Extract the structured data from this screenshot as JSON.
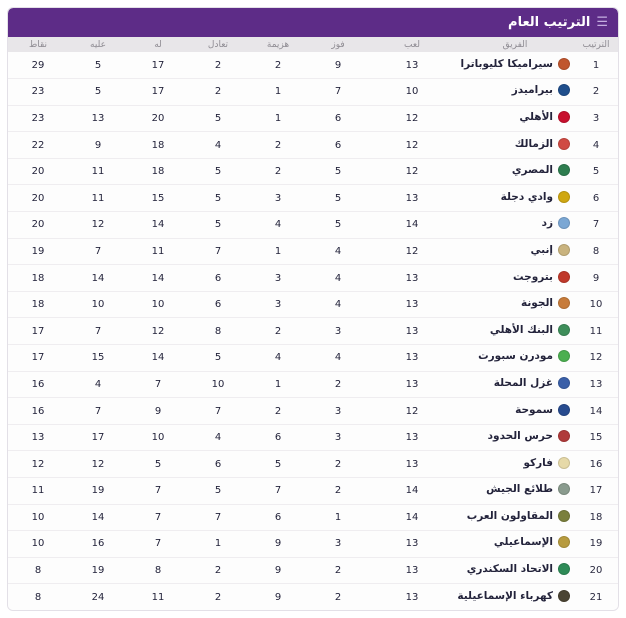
{
  "header": {
    "title": "الترتيب العام",
    "menu_icon_glyph": "☰"
  },
  "colors": {
    "header_bg": "#5d2c87",
    "columns_bg": "#e8e6e9",
    "row_bg": "#fdfdfd",
    "text": "#23233b",
    "border": "#e3e0e7"
  },
  "standings": {
    "columns": [
      "الترتيب",
      "الفريق",
      "لعب",
      "فوز",
      "هزيمة",
      "تعادل",
      "له",
      "عليه",
      "نقاط"
    ],
    "rows": [
      {
        "rank": "1",
        "team": "سيراميكا كليوباترا",
        "logo_color": "#c0562e",
        "played": "13",
        "wins": "9",
        "losses": "2",
        "draws": "2",
        "goals_for": "17",
        "goals_against": "5",
        "points": "29"
      },
      {
        "rank": "2",
        "team": "بيراميدز",
        "logo_color": "#1f4e8c",
        "played": "10",
        "wins": "7",
        "losses": "1",
        "draws": "2",
        "goals_for": "17",
        "goals_against": "5",
        "points": "23"
      },
      {
        "rank": "3",
        "team": "الأهلي",
        "logo_color": "#c8102e",
        "played": "12",
        "wins": "6",
        "losses": "1",
        "draws": "5",
        "goals_for": "20",
        "goals_against": "13",
        "points": "23"
      },
      {
        "rank": "4",
        "team": "الزمالك",
        "logo_color": "#d04a43",
        "played": "12",
        "wins": "6",
        "losses": "2",
        "draws": "4",
        "goals_for": "18",
        "goals_against": "9",
        "points": "22"
      },
      {
        "rank": "5",
        "team": "المصري",
        "logo_color": "#2e7d4f",
        "played": "12",
        "wins": "5",
        "losses": "2",
        "draws": "5",
        "goals_for": "18",
        "goals_against": "11",
        "points": "20"
      },
      {
        "rank": "6",
        "team": "وادي دجلة",
        "logo_color": "#cfa712",
        "played": "13",
        "wins": "5",
        "losses": "3",
        "draws": "5",
        "goals_for": "15",
        "goals_against": "11",
        "points": "20"
      },
      {
        "rank": "7",
        "team": "زد",
        "logo_color": "#7ba7d4",
        "played": "14",
        "wins": "5",
        "losses": "4",
        "draws": "5",
        "goals_for": "14",
        "goals_against": "12",
        "points": "20"
      },
      {
        "rank": "8",
        "team": "إنبي",
        "logo_color": "#c9b37e",
        "played": "12",
        "wins": "4",
        "losses": "1",
        "draws": "7",
        "goals_for": "11",
        "goals_against": "7",
        "points": "19"
      },
      {
        "rank": "9",
        "team": "بتروجت",
        "logo_color": "#c0392b",
        "played": "13",
        "wins": "4",
        "losses": "3",
        "draws": "6",
        "goals_for": "14",
        "goals_against": "14",
        "points": "18"
      },
      {
        "rank": "10",
        "team": "الجونة",
        "logo_color": "#c77b3a",
        "played": "13",
        "wins": "4",
        "losses": "3",
        "draws": "6",
        "goals_for": "10",
        "goals_against": "10",
        "points": "18"
      },
      {
        "rank": "11",
        "team": "البنك الأهلي",
        "logo_color": "#3e8e5a",
        "played": "13",
        "wins": "3",
        "losses": "2",
        "draws": "8",
        "goals_for": "12",
        "goals_against": "7",
        "points": "17"
      },
      {
        "rank": "12",
        "team": "مودرن سبورت",
        "logo_color": "#4caf50",
        "played": "13",
        "wins": "4",
        "losses": "4",
        "draws": "5",
        "goals_for": "14",
        "goals_against": "15",
        "points": "17"
      },
      {
        "rank": "13",
        "team": "غزل المحلة",
        "logo_color": "#3a5fa8",
        "played": "13",
        "wins": "2",
        "losses": "1",
        "draws": "10",
        "goals_for": "7",
        "goals_against": "4",
        "points": "16"
      },
      {
        "rank": "14",
        "team": "سموحة",
        "logo_color": "#274b8f",
        "played": "12",
        "wins": "3",
        "losses": "2",
        "draws": "7",
        "goals_for": "9",
        "goals_against": "7",
        "points": "16"
      },
      {
        "rank": "15",
        "team": "حرس الحدود",
        "logo_color": "#b03a3a",
        "played": "13",
        "wins": "3",
        "losses": "6",
        "draws": "4",
        "goals_for": "10",
        "goals_against": "17",
        "points": "13"
      },
      {
        "rank": "16",
        "team": "فاركو",
        "logo_color": "#e6d9a8",
        "played": "13",
        "wins": "2",
        "losses": "5",
        "draws": "6",
        "goals_for": "5",
        "goals_against": "12",
        "points": "12"
      },
      {
        "rank": "17",
        "team": "طلائع الجيش",
        "logo_color": "#8a9b8e",
        "played": "14",
        "wins": "2",
        "losses": "7",
        "draws": "5",
        "goals_for": "7",
        "goals_against": "19",
        "points": "11"
      },
      {
        "rank": "18",
        "team": "المقاولون العرب",
        "logo_color": "#7a7f3c",
        "played": "14",
        "wins": "1",
        "losses": "6",
        "draws": "7",
        "goals_for": "7",
        "goals_against": "14",
        "points": "10"
      },
      {
        "rank": "19",
        "team": "الإسماعيلي",
        "logo_color": "#b79b3f",
        "played": "13",
        "wins": "3",
        "losses": "9",
        "draws": "1",
        "goals_for": "7",
        "goals_against": "16",
        "points": "10"
      },
      {
        "rank": "20",
        "team": "الاتحاد السكندري",
        "logo_color": "#2e8b57",
        "played": "13",
        "wins": "2",
        "losses": "9",
        "draws": "2",
        "goals_for": "8",
        "goals_against": "19",
        "points": "8"
      },
      {
        "rank": "21",
        "team": "كهرباء الإسماعيلية",
        "logo_color": "#4a4433",
        "played": "13",
        "wins": "2",
        "losses": "9",
        "draws": "2",
        "goals_for": "11",
        "goals_against": "24",
        "points": "8"
      }
    ]
  }
}
